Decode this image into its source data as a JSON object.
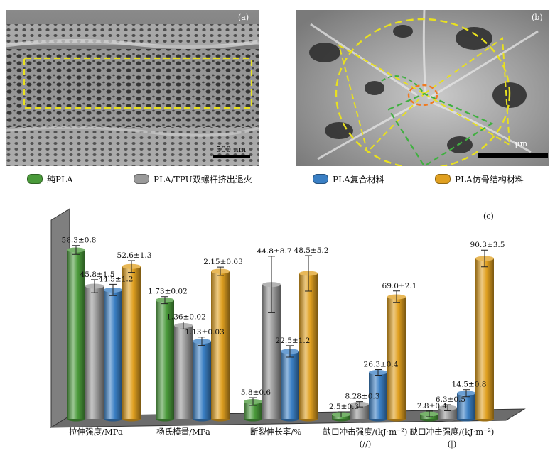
{
  "panels": {
    "a": {
      "label": "(a)",
      "scalebar": "500 nm"
    },
    "b": {
      "label": "(b)",
      "scalebar": "1 μm"
    }
  },
  "legend": [
    {
      "label": "纯PLA",
      "color": "#4a9a3a"
    },
    {
      "label": "PLA/TPU双螺杆挤出退火",
      "color": "#9a9a9a"
    },
    {
      "label": "PLA复合材料",
      "color": "#3a7fc4"
    },
    {
      "label": "PLA仿骨结构材料",
      "color": "#e0a020"
    }
  ],
  "chart_label": "(c)",
  "chart_data": {
    "type": "bar",
    "categories": [
      "拉伸强度/MPa",
      "杨氏模量/MPa",
      "断裂伸长率/%",
      "缺口冲击强度/(kJ·m⁻²)",
      "缺口冲击强度/(kJ·m⁻²)"
    ],
    "category_sublabels": [
      "",
      "",
      "",
      "(//)",
      "(|)"
    ],
    "series": [
      {
        "name": "纯PLA",
        "values": [
          58.3,
          1.73,
          5.8,
          2.5,
          2.8
        ],
        "errors": [
          0.8,
          0.02,
          0.6,
          0.3,
          0.4
        ],
        "labels": [
          "58.3±0.8",
          "1.73±0.02",
          "5.8±0.6",
          "2.5±0.3",
          "2.8±0.4"
        ]
      },
      {
        "name": "PLA/TPU双螺杆挤出退火",
        "values": [
          45.8,
          1.36,
          44.8,
          8.28,
          6.3
        ],
        "errors": [
          1.5,
          0.02,
          8.7,
          0.3,
          0.5
        ],
        "labels": [
          "45.8±1.5",
          "1.36±0.02",
          "44.8±8.7",
          "8.28±0.3",
          "6.3±0.5"
        ]
      },
      {
        "name": "PLA复合材料",
        "values": [
          44.5,
          1.13,
          22.5,
          26.3,
          14.5
        ],
        "errors": [
          1.2,
          0.03,
          1.2,
          0.4,
          0.8
        ],
        "labels": [
          "44.5±1.2",
          "1.13±0.03",
          "22.5±1.2",
          "26.3±0.4",
          "14.5±0.8"
        ]
      },
      {
        "name": "PLA仿骨结构材料",
        "values": [
          52.6,
          2.15,
          48.5,
          69.0,
          90.3
        ],
        "errors": [
          1.3,
          0.03,
          5.2,
          2.1,
          3.5
        ],
        "labels": [
          "52.6±1.3",
          "2.15±0.03",
          "48.5±5.2",
          "69.0±2.1",
          "90.3±3.5"
        ]
      }
    ],
    "colors": [
      "#4a9a3a",
      "#9a9a9a",
      "#3a7fc4",
      "#e0a020"
    ]
  }
}
